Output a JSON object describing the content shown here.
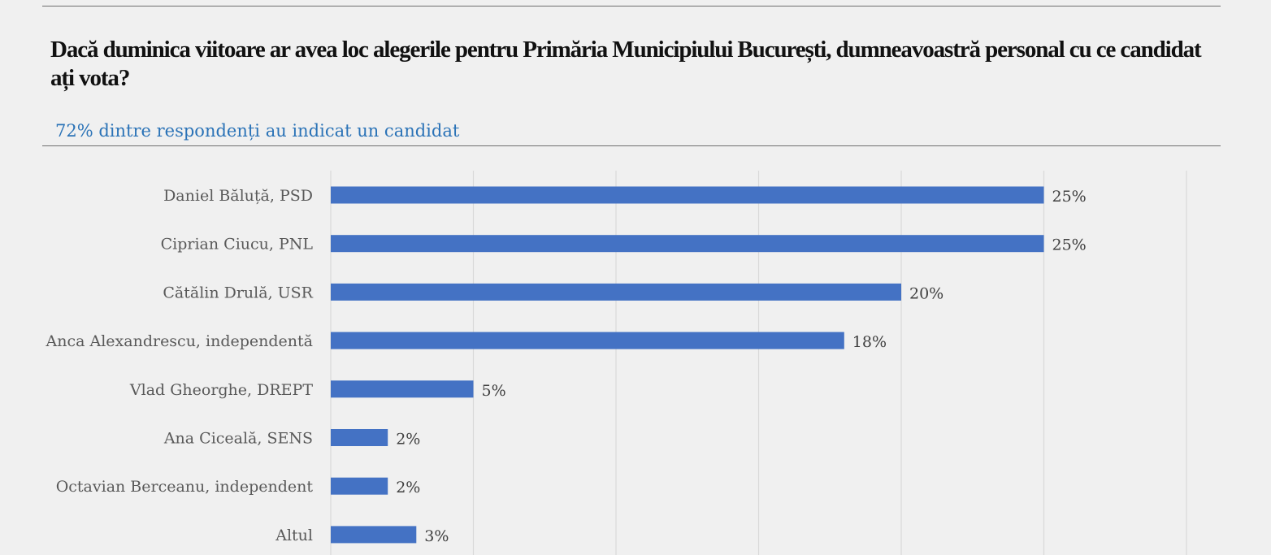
{
  "header": {
    "title": "Dacă duminica viitoare ar avea loc alegerile pentru Primăria Municipiului București, dumneavoastră personal cu ce candidat ați vota?",
    "subtitle": "72% dintre respondenți au indicat un candidat"
  },
  "chart_data": {
    "type": "bar",
    "orientation": "horizontal",
    "categories": [
      "Daniel Băluță, PSD",
      "Ciprian Ciucu, PNL",
      "Cătălin Drulă, USR",
      "Anca Alexandrescu, independentă",
      "Vlad Gheorghe, DREPT",
      "Ana Ciceală, SENS",
      "Octavian Berceanu, independent",
      "Altul"
    ],
    "values": [
      25,
      25,
      20,
      18,
      5,
      2,
      2,
      3
    ],
    "data_labels": [
      "25%",
      "25%",
      "20%",
      "18%",
      "5%",
      "2%",
      "2%",
      "3%"
    ],
    "unit": "%",
    "xlim": [
      0,
      30
    ],
    "grid": true,
    "legend": "none",
    "bar_color": "#4472c4",
    "grid_color": "#d9d9d9"
  }
}
